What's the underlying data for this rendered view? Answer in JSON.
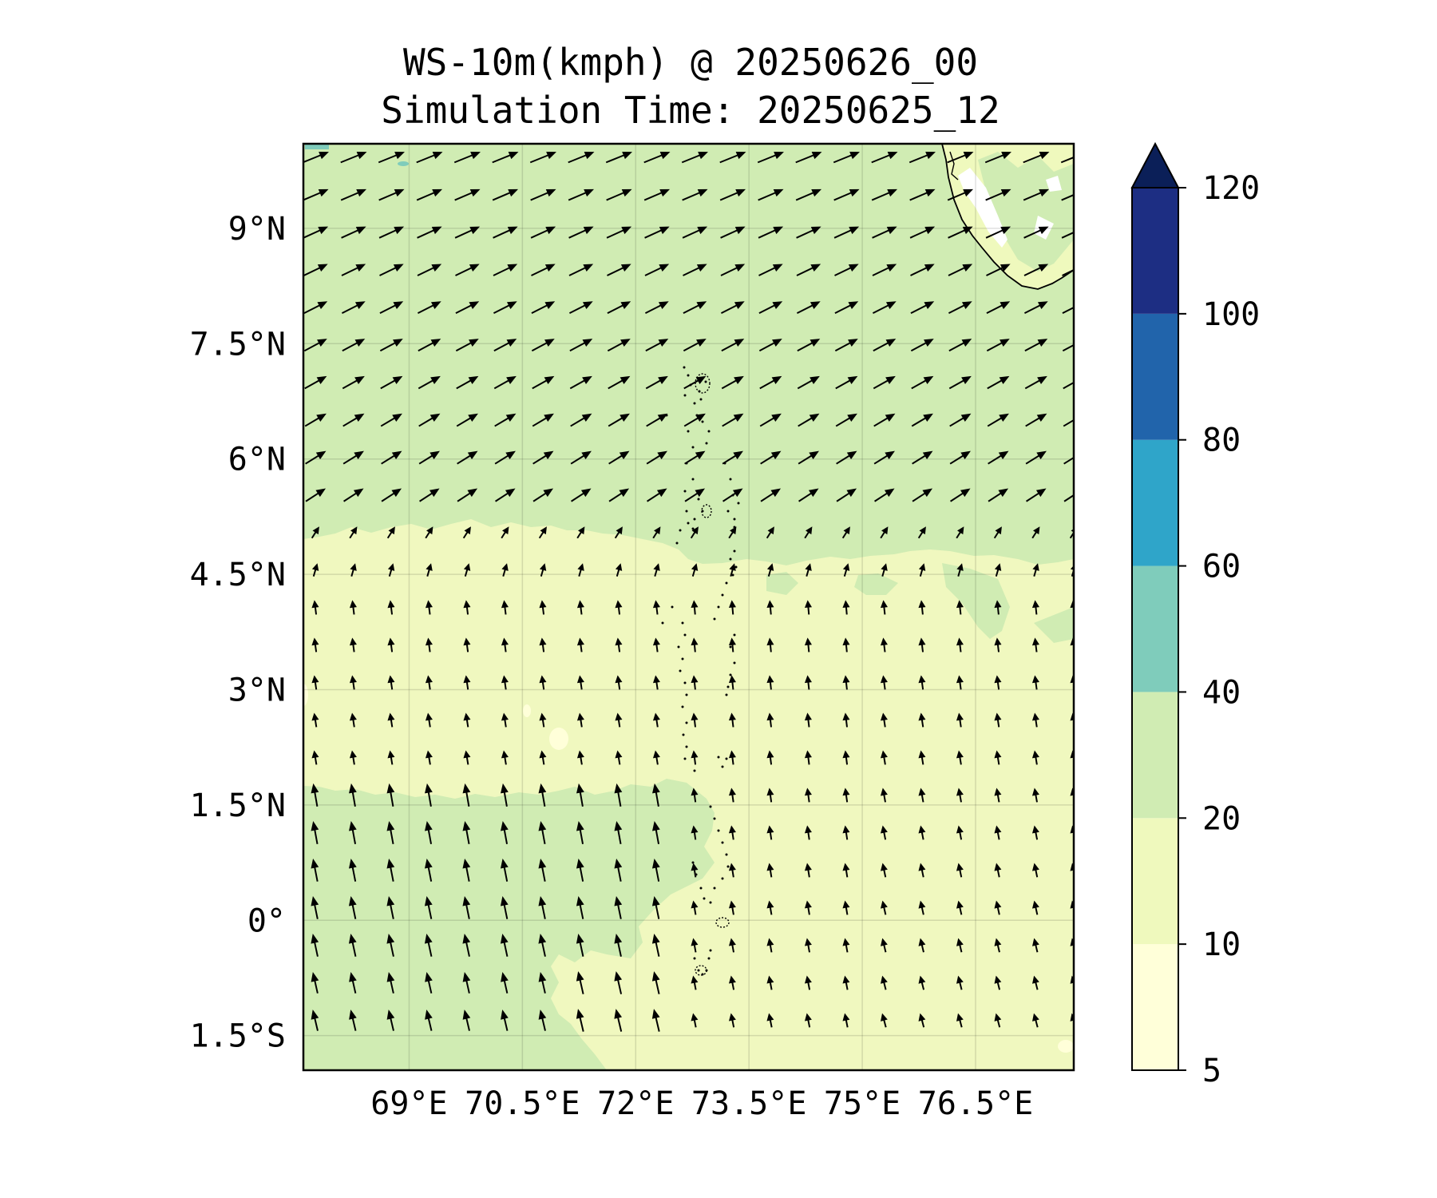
{
  "title": {
    "line1": "WS-10m(kmph) @ 20250626_00",
    "line2": "Simulation Time: 20250625_12"
  },
  "map": {
    "extent": {
      "lon_min": 67.6,
      "lon_max": 77.8,
      "lat_min": -1.95,
      "lat_max": 10.1
    },
    "lon_ticks": [
      {
        "value": 69,
        "label": "69°E"
      },
      {
        "value": 70.5,
        "label": "70.5°E"
      },
      {
        "value": 72,
        "label": "72°E"
      },
      {
        "value": 73.5,
        "label": "73.5°E"
      },
      {
        "value": 75,
        "label": "75°E"
      },
      {
        "value": 76.5,
        "label": "76.5°E"
      }
    ],
    "lat_ticks": [
      {
        "value": 9,
        "label": "9°N"
      },
      {
        "value": 7.5,
        "label": "7.5°N"
      },
      {
        "value": 6,
        "label": "6°N"
      },
      {
        "value": 4.5,
        "label": "4.5°N"
      },
      {
        "value": 3,
        "label": "3°N"
      },
      {
        "value": 1.5,
        "label": "1.5°N"
      },
      {
        "value": 0,
        "label": "0°"
      },
      {
        "value": -1.5,
        "label": "1.5°S"
      }
    ],
    "gridlines": true,
    "wind_field": {
      "regime_north": {
        "lat_from": 5.0,
        "direction_deg_from_east": 25,
        "speed_kmph": 25
      },
      "regime_south": {
        "lat_to": 4.0,
        "direction": "southerly (arrows pointing north, slight westward tilt)",
        "speed_kmph": 12
      },
      "speed_zones": [
        {
          "region": "north of ~4.8°N",
          "range_kmph": "20-40"
        },
        {
          "region": "~1.7°N to ~4.8°N",
          "range_kmph": "10-20"
        },
        {
          "region": "south-west below ~1.7°N, west of ~73°E",
          "range_kmph": "20-40"
        },
        {
          "region": "south-east below ~1.7°N, east of ~73°E",
          "range_kmph": "10-20"
        }
      ]
    },
    "land": "south-western tip of India (Kerala coast) at top-right corner",
    "islands": "Lakshadweep / Maldives chain near 73-73.8°E (dotted coastlines)"
  },
  "colorbar": {
    "levels": [
      5,
      10,
      20,
      40,
      60,
      80,
      100,
      120
    ],
    "tick_labels": [
      "5",
      "10",
      "20",
      "40",
      "60",
      "80",
      "100",
      "120"
    ],
    "colors": [
      "#ffffd9",
      "#eff9bd",
      "#d0ecb3",
      "#7fccbb",
      "#2fa5c9",
      "#2164ab",
      "#1d2e83",
      "#0b1f58"
    ],
    "extend": "max"
  }
}
